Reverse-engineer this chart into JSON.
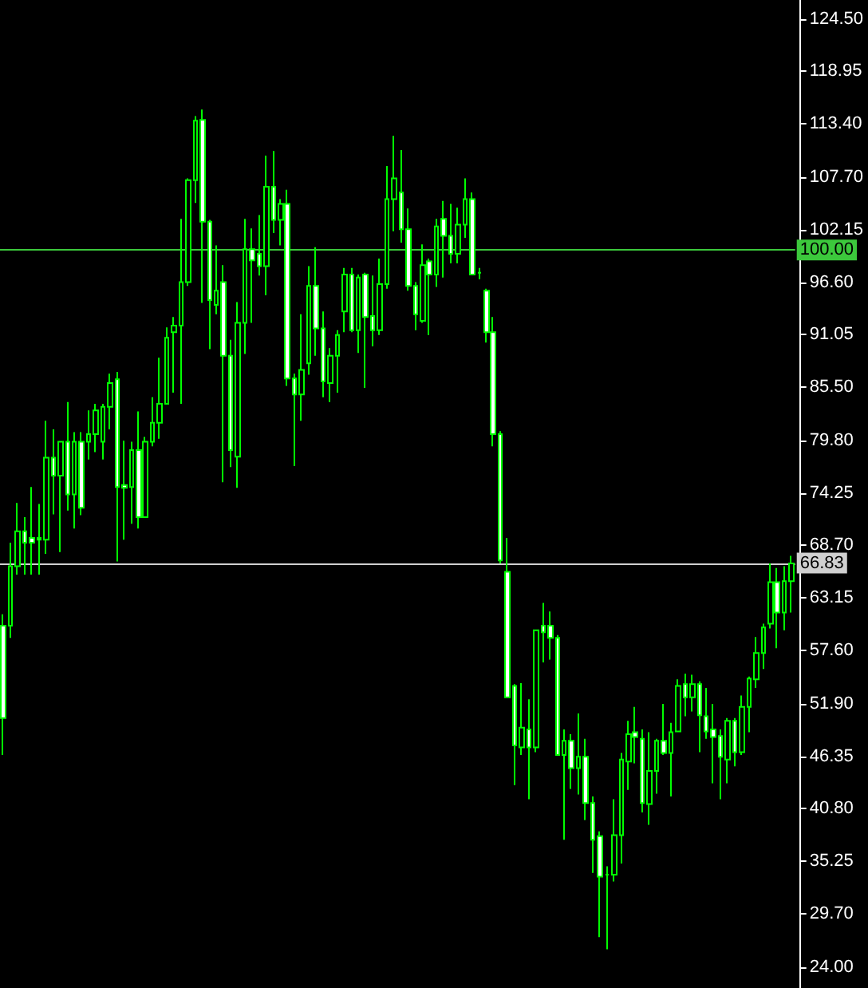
{
  "chart_data": {
    "type": "candlestick",
    "categories": [
      null,
      null,
      null,
      null,
      null,
      null,
      null,
      null,
      null,
      null,
      null,
      null,
      null,
      null,
      null,
      null,
      null,
      null,
      null,
      null,
      null,
      null,
      null,
      null,
      null,
      null,
      null,
      null,
      null,
      null,
      null,
      null,
      null,
      null,
      null,
      null,
      null,
      null,
      null,
      null,
      null,
      null,
      null,
      null,
      null,
      null,
      null,
      null,
      null,
      null,
      null,
      null,
      null,
      null,
      null,
      null,
      null,
      null,
      null,
      null,
      null,
      null,
      null,
      null,
      null,
      null,
      null,
      null,
      null,
      null,
      null,
      null,
      null,
      null,
      null,
      null,
      null,
      null,
      null,
      null,
      null,
      null,
      null,
      null,
      null,
      null,
      null,
      null,
      null,
      null,
      null,
      null,
      null,
      null,
      null,
      null,
      null,
      null,
      null,
      null,
      null,
      null,
      null,
      null,
      null,
      null,
      null,
      null,
      null,
      null,
      null,
      null
    ],
    "series": [
      {
        "color": "#00ff00",
        "ohlc": [
          [
            60.2,
            61.4,
            46.5,
            50.4
          ],
          [
            60.2,
            69.0,
            58.9,
            66.5
          ],
          [
            66.5,
            73.2,
            65.6,
            70.2
          ],
          [
            70.2,
            71.7,
            65.6,
            69.0
          ],
          [
            69.5,
            74.9,
            65.6,
            69.0
          ],
          [
            69.5,
            73.1,
            65.6,
            69.3
          ],
          [
            69.3,
            81.9,
            67.8,
            78.0
          ],
          [
            78.0,
            81.0,
            72.0,
            76.1
          ],
          [
            76.1,
            79.7,
            68.0,
            79.7
          ],
          [
            79.7,
            83.9,
            72.4,
            74.1
          ],
          [
            74.1,
            80.7,
            70.5,
            79.7
          ],
          [
            79.7,
            80.7,
            71.9,
            72.7
          ],
          [
            79.7,
            83.0,
            77.8,
            80.5
          ],
          [
            80.5,
            83.7,
            78.6,
            83.0
          ],
          [
            79.7,
            83.7,
            77.8,
            83.4
          ],
          [
            83.4,
            86.9,
            81.0,
            85.9
          ],
          [
            86.3,
            87.1,
            67.0,
            74.9
          ],
          [
            75.1,
            79.8,
            69.3,
            74.8
          ],
          [
            74.9,
            79.7,
            71.0,
            78.8
          ],
          [
            78.8,
            82.9,
            70.5,
            71.7
          ],
          [
            71.7,
            80.2,
            71.7,
            79.7
          ],
          [
            79.7,
            84.4,
            79.2,
            81.7
          ],
          [
            81.7,
            88.6,
            80.0,
            83.7
          ],
          [
            83.7,
            91.8,
            83.7,
            90.7
          ],
          [
            91.3,
            92.9,
            84.9,
            92.0
          ],
          [
            92.0,
            103.3,
            83.7,
            96.6
          ],
          [
            96.6,
            107.6,
            96.2,
            107.4
          ],
          [
            107.4,
            114.2,
            105.0,
            113.7
          ],
          [
            113.8,
            114.9,
            94.4,
            103.0
          ],
          [
            103.0,
            103.2,
            89.5,
            94.7
          ],
          [
            94.2,
            100.5,
            93.2,
            95.7
          ],
          [
            96.6,
            98.4,
            75.4,
            88.8
          ],
          [
            88.8,
            90.5,
            77.0,
            78.8
          ],
          [
            78.1,
            94.5,
            74.8,
            92.3
          ],
          [
            92.3,
            103.3,
            89.0,
            100.1
          ],
          [
            100.1,
            102.3,
            92.3,
            98.9
          ],
          [
            99.6,
            103.7,
            97.3,
            98.3
          ],
          [
            98.3,
            110.0,
            95.2,
            106.7
          ],
          [
            106.7,
            110.5,
            101.8,
            103.2
          ],
          [
            103.2,
            105.4,
            100.5,
            104.9
          ],
          [
            104.9,
            106.4,
            85.6,
            86.4
          ],
          [
            86.4,
            86.9,
            77.1,
            84.7
          ],
          [
            84.7,
            93.2,
            81.9,
            87.3
          ],
          [
            88.0,
            98.3,
            86.8,
            96.2
          ],
          [
            96.2,
            100.3,
            88.8,
            91.7
          ],
          [
            91.7,
            93.5,
            84.4,
            86.1
          ],
          [
            85.9,
            89.6,
            83.9,
            88.8
          ],
          [
            88.8,
            91.5,
            84.9,
            91.0
          ],
          [
            93.5,
            98.1,
            91.3,
            97.4
          ],
          [
            97.4,
            98.1,
            91.3,
            91.5
          ],
          [
            91.5,
            97.4,
            89.1,
            97.1
          ],
          [
            97.4,
            97.6,
            85.4,
            92.9
          ],
          [
            93.0,
            97.3,
            89.8,
            91.5
          ],
          [
            91.5,
            99.1,
            91.0,
            96.4
          ],
          [
            96.4,
            108.9,
            95.9,
            105.4
          ],
          [
            105.4,
            112.1,
            102.0,
            107.6
          ],
          [
            106.1,
            110.6,
            100.8,
            102.2
          ],
          [
            102.2,
            104.4,
            95.7,
            96.2
          ],
          [
            96.2,
            96.6,
            91.5,
            93.2
          ],
          [
            92.5,
            100.6,
            92.3,
            98.4
          ],
          [
            98.8,
            99.1,
            91.0,
            97.4
          ],
          [
            97.4,
            103.3,
            96.1,
            102.5
          ],
          [
            103.3,
            105.2,
            97.1,
            101.5
          ],
          [
            101.5,
            104.9,
            98.6,
            99.6
          ],
          [
            99.6,
            104.5,
            98.6,
            102.7
          ],
          [
            102.7,
            107.6,
            101.3,
            105.4
          ],
          [
            105.4,
            106.1,
            97.4,
            97.4
          ],
          [
            97.6,
            98.1,
            96.9,
            97.6
          ],
          [
            95.7,
            95.9,
            90.2,
            91.3
          ],
          [
            91.3,
            92.9,
            79.2,
            80.5
          ],
          [
            80.5,
            80.8,
            66.8,
            67.1
          ],
          [
            65.9,
            69.5,
            52.6,
            52.6
          ],
          [
            53.8,
            54.0,
            43.3,
            47.5
          ],
          [
            47.3,
            54.1,
            46.5,
            49.4
          ],
          [
            49.2,
            52.4,
            41.8,
            47.3
          ],
          [
            47.3,
            59.7,
            46.8,
            59.7
          ],
          [
            60.2,
            62.6,
            56.3,
            59.5
          ],
          [
            60.2,
            61.7,
            56.6,
            58.9
          ],
          [
            58.9,
            59.2,
            46.5,
            46.5
          ],
          [
            46.5,
            49.2,
            37.5,
            48.0
          ],
          [
            48.0,
            48.7,
            42.9,
            45.1
          ],
          [
            45.1,
            50.9,
            42.3,
            46.3
          ],
          [
            46.3,
            48.2,
            39.6,
            41.4
          ],
          [
            41.4,
            42.1,
            34.0,
            37.5
          ],
          [
            37.9,
            38.4,
            27.2,
            33.6
          ],
          [
            33.8,
            34.7,
            25.9,
            33.8
          ],
          [
            33.8,
            41.8,
            33.1,
            38.0
          ],
          [
            38.0,
            46.7,
            35.0,
            46.0
          ],
          [
            45.8,
            50.1,
            42.8,
            48.7
          ],
          [
            48.9,
            51.6,
            45.6,
            48.4
          ],
          [
            48.2,
            49.2,
            40.4,
            41.4
          ],
          [
            41.3,
            48.9,
            39.1,
            44.8
          ],
          [
            44.8,
            48.2,
            42.4,
            48.0
          ],
          [
            48.0,
            51.9,
            46.5,
            46.7
          ],
          [
            46.7,
            49.9,
            42.1,
            48.9
          ],
          [
            49.0,
            54.5,
            48.9,
            53.8
          ],
          [
            54.0,
            55.1,
            50.6,
            52.6
          ],
          [
            52.6,
            55.0,
            51.1,
            54.0
          ],
          [
            54.0,
            54.3,
            46.8,
            50.7
          ],
          [
            50.6,
            53.6,
            48.2,
            49.0
          ],
          [
            49.2,
            51.9,
            43.5,
            48.4
          ],
          [
            48.5,
            49.2,
            41.8,
            46.3
          ],
          [
            46.0,
            50.4,
            43.5,
            50.1
          ],
          [
            50.1,
            50.4,
            45.3,
            46.8
          ],
          [
            46.8,
            52.8,
            46.5,
            51.6
          ],
          [
            51.6,
            54.8,
            48.9,
            54.6
          ],
          [
            54.5,
            59.0,
            53.6,
            57.3
          ],
          [
            57.3,
            60.4,
            55.6,
            60.0
          ],
          [
            60.4,
            66.8,
            59.9,
            64.8
          ],
          [
            64.8,
            66.3,
            57.8,
            61.6
          ],
          [
            61.6,
            66.5,
            59.7,
            64.9
          ],
          [
            64.9,
            67.6,
            61.6,
            66.8
          ]
        ]
      }
    ],
    "ylim": [
      21.8,
      126.5
    ],
    "yticks": [
      {
        "value": 24.0,
        "label": "24.00"
      },
      {
        "value": 29.7,
        "label": "29.70"
      },
      {
        "value": 35.25,
        "label": "35.25"
      },
      {
        "value": 40.8,
        "label": "40.80"
      },
      {
        "value": 46.35,
        "label": "46.35"
      },
      {
        "value": 51.9,
        "label": "51.90"
      },
      {
        "value": 57.6,
        "label": "57.60"
      },
      {
        "value": 63.15,
        "label": "63.15"
      },
      {
        "value": 68.7,
        "label": "68.70"
      },
      {
        "value": 74.25,
        "label": "74.25"
      },
      {
        "value": 79.8,
        "label": "79.80"
      },
      {
        "value": 85.5,
        "label": "85.50"
      },
      {
        "value": 91.05,
        "label": "91.05"
      },
      {
        "value": 96.6,
        "label": "96.60"
      },
      {
        "value": 102.15,
        "label": "102.15"
      },
      {
        "value": 107.7,
        "label": "107.70"
      },
      {
        "value": 113.4,
        "label": "113.40"
      },
      {
        "value": 118.95,
        "label": "118.95"
      },
      {
        "value": 124.5,
        "label": "124.50"
      }
    ],
    "ref_lines": [
      {
        "axis": "y",
        "value": 100,
        "label": "100.00",
        "color": "#3cc83c"
      },
      {
        "axis": "y",
        "value": 66.83,
        "label": "66.83",
        "color": "#d0d0d0"
      }
    ],
    "tick_labels": "y"
  }
}
